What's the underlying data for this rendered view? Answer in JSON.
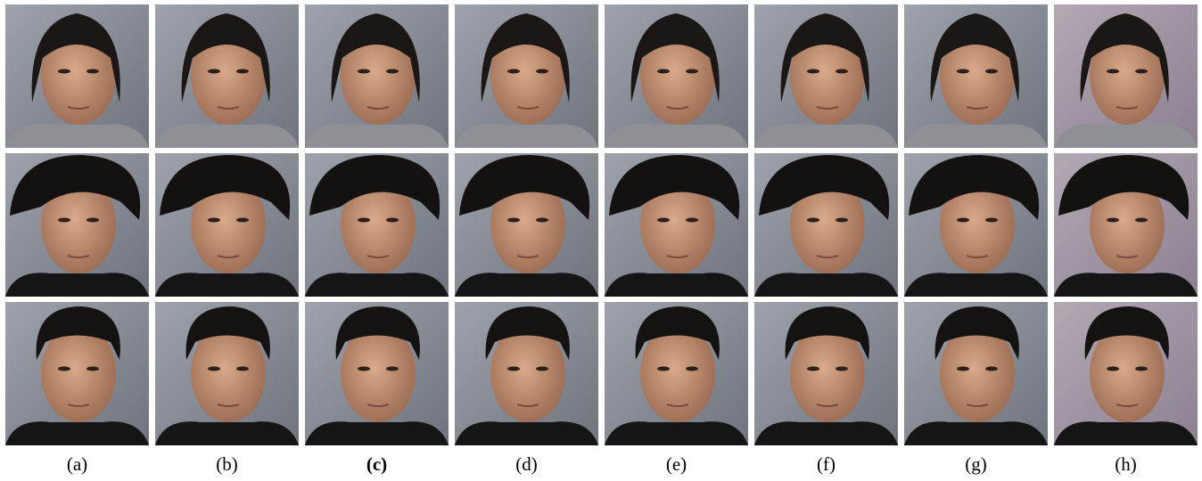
{
  "columns": [
    {
      "label": "(a)"
    },
    {
      "label": "(b)"
    },
    {
      "label": "(c)"
    },
    {
      "label": "(d)"
    },
    {
      "label": "(e)"
    },
    {
      "label": "(f)"
    },
    {
      "label": "(g)"
    },
    {
      "label": "(h)"
    }
  ]
}
